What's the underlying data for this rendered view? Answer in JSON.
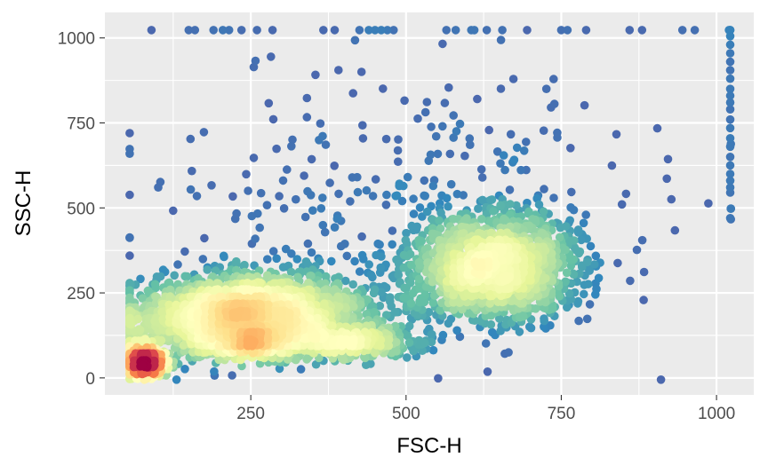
{
  "chart_data": {
    "type": "scatter",
    "xlabel": "FSC-H",
    "ylabel": "SSC-H",
    "xlim": [
      15,
      1060
    ],
    "ylim": [
      -50,
      1075
    ],
    "x_ticks": [
      250,
      500,
      750,
      1000
    ],
    "y_ticks": [
      0,
      250,
      500,
      750,
      1000
    ],
    "x_tick_labels": [
      "250",
      "500",
      "750",
      "1000"
    ],
    "y_tick_labels": [
      "0",
      "250",
      "500",
      "750",
      "1000"
    ],
    "grid": true,
    "legend": "none",
    "density_colormap": [
      "#5e4fa2",
      "#3288bd",
      "#66c2a5",
      "#abdda4",
      "#e6f598",
      "#ffffbf",
      "#fee08b",
      "#fdae61",
      "#f46d43",
      "#d53e4f",
      "#9e0142"
    ],
    "saturation_points": {
      "y_value": 1023,
      "x_values": [
        90,
        150,
        160,
        190,
        205,
        215,
        235,
        260,
        285,
        385,
        425,
        440,
        450,
        460,
        470,
        480,
        565,
        580,
        605,
        610,
        630,
        655,
        695,
        750,
        760,
        790,
        860,
        880,
        945,
        965,
        1020,
        1022
      ]
    },
    "saturation_column": {
      "x_value": 1022,
      "y_values": [
        470,
        545,
        560,
        580,
        600,
        625,
        650,
        680,
        705,
        735,
        760,
        790,
        810,
        830,
        850,
        880,
        905,
        930,
        955,
        980,
        1005,
        1023
      ]
    },
    "clusters": [
      {
        "x_mean": 240,
        "y_mean": 190,
        "x_sd": 100,
        "y_sd": 55,
        "n": 2600
      },
      {
        "x_mean": 640,
        "y_mean": 330,
        "x_sd": 65,
        "y_sd": 75,
        "n": 1700
      },
      {
        "x_mean": 80,
        "y_mean": 45,
        "x_sd": 16,
        "y_sd": 20,
        "n": 650
      },
      {
        "x_mean": 250,
        "y_mean": 100,
        "x_sd": 45,
        "y_sd": 22,
        "n": 500
      },
      {
        "x_mean": 400,
        "y_mean": 105,
        "x_sd": 55,
        "y_sd": 25,
        "n": 500
      },
      {
        "x_mean": 500,
        "y_mean": 500,
        "x_sd": 230,
        "y_sd": 200,
        "n": 300
      }
    ]
  }
}
